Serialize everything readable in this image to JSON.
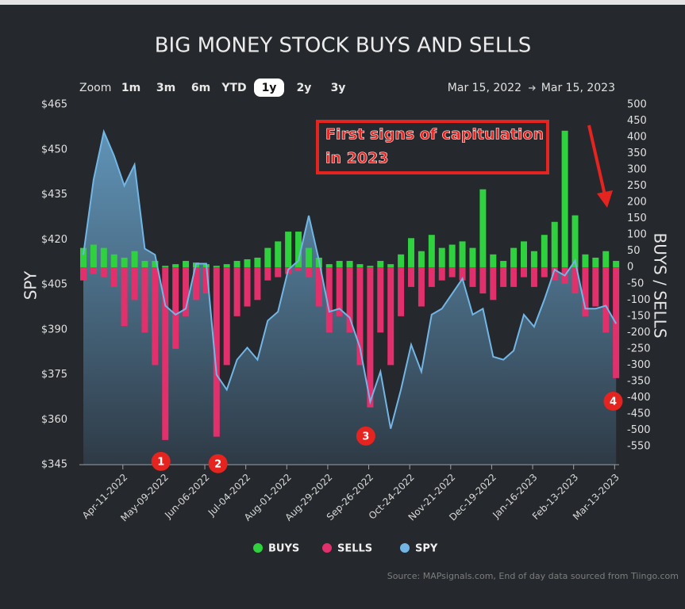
{
  "chart_data": {
    "type": "combo",
    "title": "BIG MONEY STOCK BUYS AND SELLS",
    "y_label": "SPY",
    "y2_label": "BUYS / SELLS",
    "source": "Source: MAPsignals.com, End of day data sourced from Tiingo.com",
    "range_selector": {
      "label": "Zoom",
      "buttons": [
        "1m",
        "3m",
        "6m",
        "YTD",
        "1y",
        "2y",
        "3y"
      ],
      "selected": "1y",
      "from": "Mar 15, 2022",
      "to": "Mar 15, 2023"
    },
    "xlim": [
      "2022-03-15",
      "2023-03-15"
    ],
    "xticks": [
      {
        "value": "2022-04-11",
        "label": "Apr-11-2022"
      },
      {
        "value": "2022-05-09",
        "label": "May-09-2022"
      },
      {
        "value": "2022-06-06",
        "label": "Jun-06-2022"
      },
      {
        "value": "2022-07-04",
        "label": "Jul-04-2022"
      },
      {
        "value": "2022-08-01",
        "label": "Aug-01-2022"
      },
      {
        "value": "2022-08-29",
        "label": "Aug-29-2022"
      },
      {
        "value": "2022-09-26",
        "label": "Sep-26-2022"
      },
      {
        "value": "2022-10-24",
        "label": "Oct-24-2022"
      },
      {
        "value": "2022-11-21",
        "label": "Nov-21-2022"
      },
      {
        "value": "2022-12-19",
        "label": "Dec-19-2022"
      },
      {
        "value": "2023-01-16",
        "label": "Jan-16-2023"
      },
      {
        "value": "2023-02-13",
        "label": "Feb-13-2023"
      },
      {
        "value": "2023-03-13",
        "label": "Mar-13-2023"
      }
    ],
    "ylim": [
      345,
      465
    ],
    "yticks": [
      {
        "value": 345,
        "label": "$345"
      },
      {
        "value": 360,
        "label": "$360"
      },
      {
        "value": 375,
        "label": "$375"
      },
      {
        "value": 390,
        "label": "$390"
      },
      {
        "value": 405,
        "label": "$405"
      },
      {
        "value": 420,
        "label": "$420"
      },
      {
        "value": 435,
        "label": "$435"
      },
      {
        "value": 450,
        "label": "$450"
      },
      {
        "value": 465,
        "label": "$465"
      }
    ],
    "y2lim": [
      -606,
      500
    ],
    "y2ticks": [
      500,
      450,
      400,
      350,
      300,
      250,
      200,
      150,
      100,
      50,
      0,
      -50,
      -100,
      -150,
      -200,
      -250,
      -300,
      -350,
      -400,
      -450,
      -500,
      -550
    ],
    "x": [
      "2022-03-15",
      "2022-03-22",
      "2022-03-29",
      "2022-04-05",
      "2022-04-12",
      "2022-04-19",
      "2022-04-26",
      "2022-05-03",
      "2022-05-10",
      "2022-05-17",
      "2022-05-24",
      "2022-05-31",
      "2022-06-07",
      "2022-06-14",
      "2022-06-21",
      "2022-06-28",
      "2022-07-05",
      "2022-07-12",
      "2022-07-19",
      "2022-07-26",
      "2022-08-02",
      "2022-08-09",
      "2022-08-16",
      "2022-08-23",
      "2022-08-30",
      "2022-09-06",
      "2022-09-13",
      "2022-09-20",
      "2022-09-27",
      "2022-10-04",
      "2022-10-11",
      "2022-10-18",
      "2022-10-25",
      "2022-11-01",
      "2022-11-08",
      "2022-11-15",
      "2022-11-22",
      "2022-11-29",
      "2022-12-06",
      "2022-12-13",
      "2022-12-20",
      "2022-12-27",
      "2023-01-03",
      "2023-01-10",
      "2023-01-17",
      "2023-01-24",
      "2023-01-31",
      "2023-02-07",
      "2023-02-14",
      "2023-02-21",
      "2023-02-28",
      "2023-03-07",
      "2023-03-14"
    ],
    "series": [
      {
        "name": "BUYS",
        "type": "bar",
        "axis": "y2",
        "color": "#2fd13f",
        "values": [
          60,
          70,
          60,
          40,
          30,
          50,
          20,
          20,
          5,
          10,
          20,
          15,
          10,
          5,
          10,
          20,
          25,
          30,
          60,
          80,
          110,
          110,
          60,
          30,
          10,
          20,
          20,
          10,
          5,
          20,
          10,
          40,
          90,
          50,
          100,
          60,
          70,
          80,
          60,
          240,
          40,
          20,
          60,
          80,
          50,
          100,
          140,
          420,
          160,
          40,
          30,
          50,
          20
        ]
      },
      {
        "name": "SELLS",
        "type": "bar",
        "axis": "y2",
        "color": "#e2306c",
        "values": [
          -40,
          -20,
          -30,
          -60,
          -180,
          -100,
          -200,
          -300,
          -530,
          -250,
          -150,
          -100,
          -80,
          -520,
          -300,
          -150,
          -120,
          -100,
          -40,
          -30,
          -20,
          -10,
          -30,
          -120,
          -200,
          -150,
          -200,
          -300,
          -430,
          -200,
          -300,
          -150,
          -60,
          -120,
          -60,
          -40,
          -30,
          -40,
          -60,
          -80,
          -100,
          -60,
          -60,
          -30,
          -60,
          -30,
          -40,
          -50,
          -80,
          -150,
          -120,
          -200,
          -340
        ]
      },
      {
        "name": "SPY",
        "type": "area",
        "color": "#72b6e6",
        "values": [
          415,
          440,
          456,
          448,
          438,
          445,
          417,
          415,
          398,
          395,
          397,
          412,
          412,
          375,
          370,
          380,
          384,
          380,
          393,
          396,
          410,
          413,
          428,
          413,
          396,
          397,
          394,
          384,
          366,
          376,
          357,
          370,
          385,
          376,
          395,
          397,
          402,
          407,
          395,
          397,
          381,
          380,
          383,
          395,
          391,
          400,
          410,
          408,
          413,
          397,
          397,
          398,
          392
        ]
      }
    ],
    "annotation": {
      "lines": [
        "First signs of capitulation",
        "in 2023"
      ]
    },
    "markers": [
      {
        "label": "1",
        "x": "2022-05-07",
        "y": -596
      },
      {
        "label": "2",
        "x": "2022-06-15",
        "y": -603
      },
      {
        "label": "3",
        "x": "2022-09-24",
        "y": -518
      },
      {
        "label": "4",
        "x": "2023-03-12",
        "y": -411
      }
    ]
  }
}
